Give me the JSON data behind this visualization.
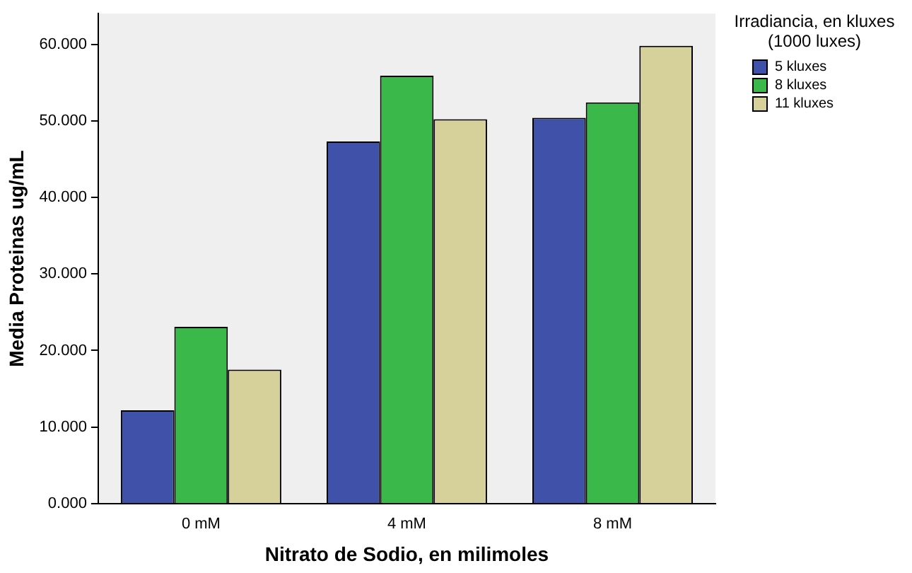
{
  "chart_data": {
    "type": "bar",
    "xlabel": "Nitrato de Sodio, en milimoles",
    "ylabel": "Media Proteinas ug/mL",
    "legend_title": "Irradiancia, en kluxes (1000 luxes)",
    "legend": "top right",
    "grid": false,
    "categories": [
      "0 mM",
      "4 mM",
      "8 mM"
    ],
    "series": [
      {
        "name": "5 kluxes",
        "color": "#3f51a8",
        "values": [
          12.2,
          47.3,
          50.4
        ]
      },
      {
        "name": "8 kluxes",
        "color": "#3bb84a",
        "values": [
          23.1,
          55.9,
          52.4
        ]
      },
      {
        "name": "11 kluxes",
        "color": "#d6d09b",
        "values": [
          17.5,
          50.2,
          59.8
        ]
      }
    ],
    "ylim": [
      0,
      64
    ],
    "yticks": [
      {
        "value": 0,
        "label": "0.000"
      },
      {
        "value": 10,
        "label": "10.000"
      },
      {
        "value": 20,
        "label": "20.000"
      },
      {
        "value": 30,
        "label": "30.000"
      },
      {
        "value": 40,
        "label": "40.000"
      },
      {
        "value": 50,
        "label": "50.000"
      },
      {
        "value": 60,
        "label": "60.000"
      }
    ]
  }
}
